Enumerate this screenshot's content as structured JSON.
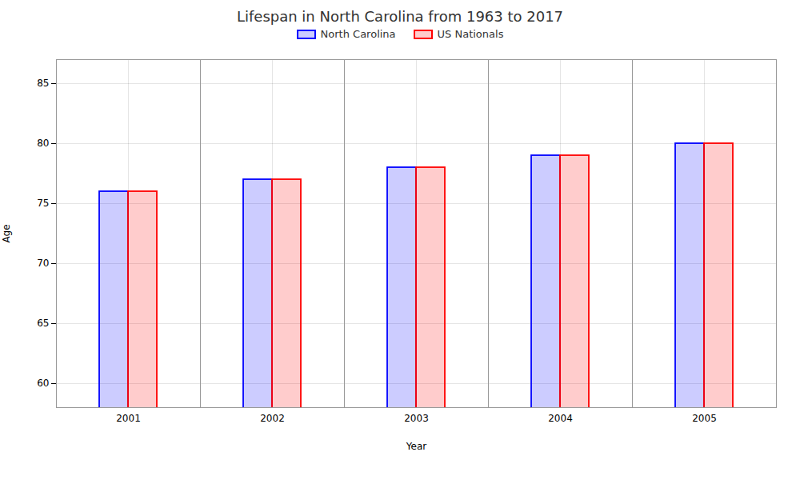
{
  "chart_data": {
    "type": "bar",
    "title": "Lifespan in North Carolina from 1963 to 2017",
    "xlabel": "Year",
    "ylabel": "Age",
    "categories": [
      "2001",
      "2002",
      "2003",
      "2004",
      "2005"
    ],
    "series": [
      {
        "name": "North Carolina",
        "color": "#0000ff",
        "values": [
          76,
          77,
          78,
          79,
          80
        ]
      },
      {
        "name": "US Nationals",
        "color": "#ff0000",
        "values": [
          76,
          77,
          78,
          79,
          80
        ]
      }
    ],
    "ylim": [
      58,
      87
    ],
    "yticks": [
      60,
      65,
      70,
      75,
      80,
      85
    ],
    "grid": true,
    "legend": "top"
  }
}
